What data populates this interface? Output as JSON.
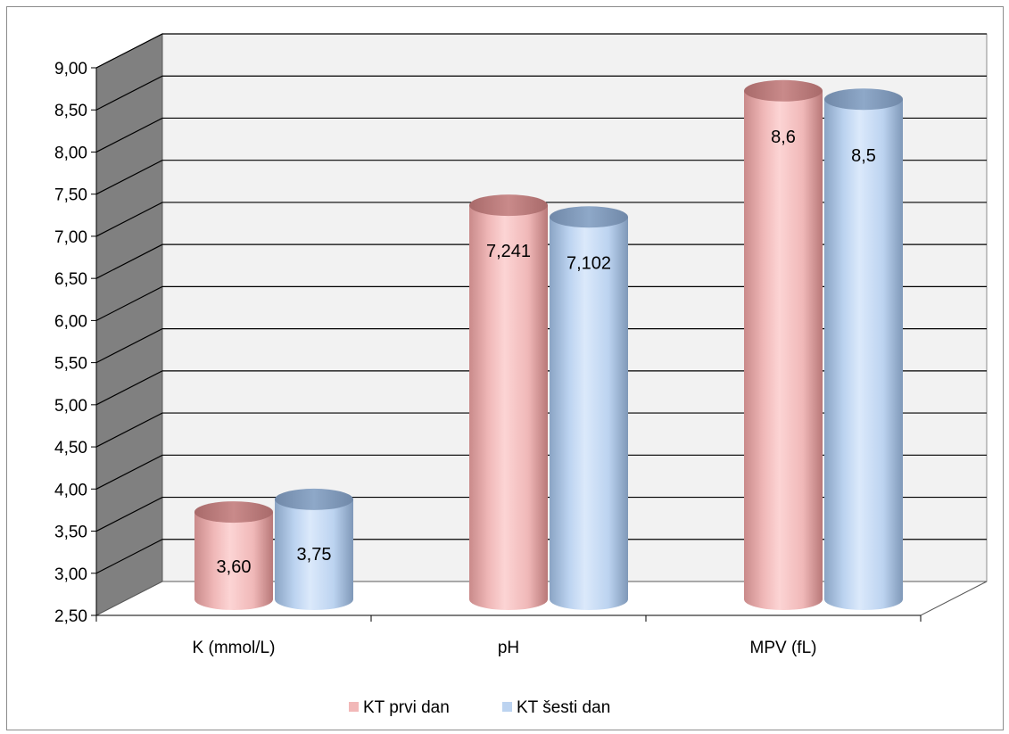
{
  "chart_data": {
    "type": "bar",
    "style": "3d-cylinder",
    "categories": [
      "K (mmol/L)",
      "pH",
      "MPV (fL)"
    ],
    "series": [
      {
        "name": "KT prvi dan",
        "values": [
          3.6,
          7.241,
          8.6
        ],
        "labels": [
          "3,60",
          "7,241",
          "8,6"
        ],
        "color": "#f2b8b8"
      },
      {
        "name": "KT šesti dan",
        "values": [
          3.75,
          7.102,
          8.5
        ],
        "labels": [
          "3,75",
          "7,102",
          "8,5"
        ],
        "color": "#bcd3f0"
      }
    ],
    "ylim": [
      2.5,
      9.0
    ],
    "yticks": [
      2.5,
      3.0,
      3.5,
      4.0,
      4.5,
      5.0,
      5.5,
      6.0,
      6.5,
      7.0,
      7.5,
      8.0,
      8.5,
      9.0
    ],
    "ytick_labels": [
      "2,50",
      "3,00",
      "3,50",
      "4,00",
      "4,50",
      "5,00",
      "5,50",
      "6,00",
      "6,50",
      "7,00",
      "7,50",
      "8,00",
      "8,50",
      "9,00"
    ],
    "grid": true,
    "legend": "bottom",
    "colors": {
      "wall": "#f2f2f2",
      "side_wall": "#808080",
      "floor": "#ffffff",
      "grid": "#000000"
    }
  }
}
